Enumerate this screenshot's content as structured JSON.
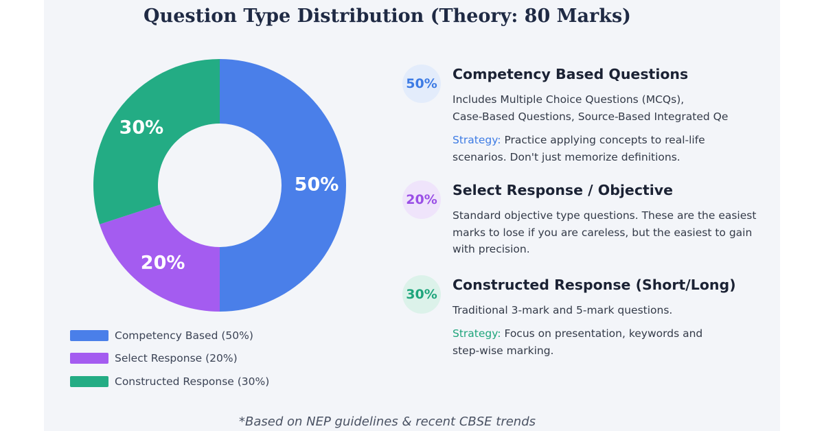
{
  "title": "Question Type Distribution (Theory: 80 Marks)",
  "chart_data": {
    "type": "pie",
    "variant": "donut",
    "categories": [
      "Competency Based",
      "Select Response",
      "Constructed Response"
    ],
    "values": [
      50,
      20,
      30
    ],
    "value_labels": [
      "50%",
      "20%",
      "30%"
    ],
    "colors": [
      "#4a7fe9",
      "#a45cf0",
      "#23ac84"
    ],
    "legend": [
      {
        "label": "Competency Based (50%)",
        "color": "#4a7fe9"
      },
      {
        "label": "Select Response (20%)",
        "color": "#a45cf0"
      },
      {
        "label": "Constructed Response (30%)",
        "color": "#23ac84"
      }
    ],
    "legend_position": "bottom-left"
  },
  "cards": [
    {
      "badge": "50%",
      "badge_color": "#3d7be4",
      "badge_bg": "#e3ecfb",
      "title": "Competency Based Questions",
      "desc_line1": "Includes Multiple Choice Questions (MCQs),",
      "desc_line2": "Case-Based Questions, Source-Based Integrated Qe",
      "strategy_label": "Strategy:",
      "strategy_text": "Practice applying concepts to real-life scenarios. Don't just memorize definitions."
    },
    {
      "badge": "20%",
      "badge_color": "#9a4fe6",
      "badge_bg": "#efe4fb",
      "title": "Select Response / Objective",
      "desc": "Standard objective type questions. These are the easiest marks to lose if you are careless, but the easiest to gain with precision."
    },
    {
      "badge": "30%",
      "badge_color": "#1fa57c",
      "badge_bg": "#dcf2ea",
      "title": "Constructed Response (Short/Long)",
      "desc": "Traditional 3-mark and 5-mark questions.",
      "strategy_label": "Strategy:",
      "strategy_text": "Focus on presentation, keywords and step-wise marking."
    }
  ],
  "strategy_color": "#3d7be4",
  "strategy_color_green": "#1fa57c",
  "footnote": "*Based on NEP guidelines & recent CBSE trends"
}
